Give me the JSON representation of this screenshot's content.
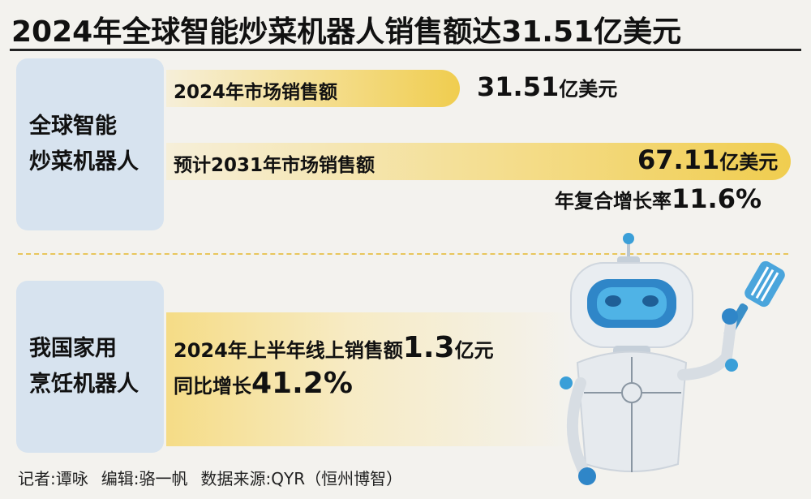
{
  "title": "2024年全球智能炒菜机器人销售额达31.51亿美元",
  "chart_data": {
    "type": "bar",
    "categories": [
      "2024年市场销售额",
      "预计2031年市场销售额"
    ],
    "values": [
      31.51,
      67.11
    ],
    "unit": "亿美元"
  },
  "global": {
    "category_lines": [
      "全球智能",
      "炒菜机器人"
    ],
    "bar1": {
      "label": "2024年市场销售额",
      "value": "31.51",
      "unit": "亿美元"
    },
    "bar2": {
      "label": "预计2031年市场销售额",
      "value": "67.11",
      "unit": "亿美元"
    },
    "cagr": {
      "label": "年复合增长率",
      "value": "11.6%"
    }
  },
  "domestic": {
    "category_lines": [
      "我国家用",
      "烹饪机器人"
    ],
    "line1": {
      "prefix": "2024年上半年线上销售额",
      "value": "1.3",
      "unit": "亿元"
    },
    "line2": {
      "prefix": "同比增长",
      "value": "41.2%"
    }
  },
  "footer": {
    "reporter": "记者:谭咏",
    "editor": "编辑:骆一帆",
    "source": "数据来源:QYR（恒州博智）"
  },
  "colors": {
    "bar_end": "#f0cd4f",
    "category_bg": "#d7e3ef",
    "robot_eye": "#3a9fd8"
  },
  "illustration": "robot-chef-with-spatula"
}
